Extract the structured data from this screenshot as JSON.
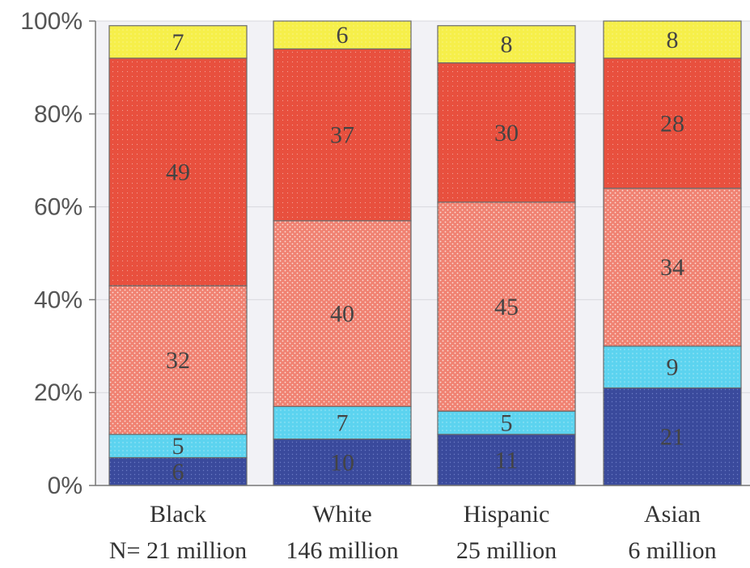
{
  "chart_data": {
    "type": "bar",
    "stacked": true,
    "percent": true,
    "categories": [
      "Black",
      "White",
      "Hispanic",
      "Asian"
    ],
    "category_sublabels": [
      "N= 21 million",
      "146 million",
      "25 million",
      "6 million"
    ],
    "series": [
      {
        "values": [
          6,
          10,
          11,
          21
        ],
        "color": "#3a4a9c"
      },
      {
        "values": [
          5,
          7,
          5,
          9
        ],
        "color": "#5cd3ef"
      },
      {
        "values": [
          32,
          40,
          45,
          34
        ],
        "color": "#f08272"
      },
      {
        "values": [
          49,
          37,
          30,
          28
        ],
        "color": "#e8503e"
      },
      {
        "values": [
          7,
          6,
          8,
          8
        ],
        "color": "#f6ef4a"
      }
    ],
    "data_labels": [
      [
        "6",
        "10",
        "11",
        "21"
      ],
      [
        "5",
        "7",
        "5",
        "9"
      ],
      [
        "32",
        "40",
        "45",
        "34"
      ],
      [
        "49",
        "37",
        "30",
        "28"
      ],
      [
        "7",
        "6",
        "8",
        "8"
      ]
    ],
    "y_ticks": [
      "0%",
      "20%",
      "40%",
      "60%",
      "80%",
      "100%"
    ],
    "ylim": [
      0,
      100
    ],
    "grid": true,
    "legend": "none"
  }
}
